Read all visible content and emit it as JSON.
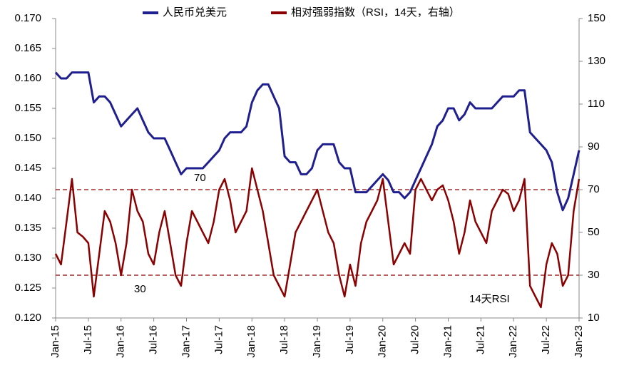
{
  "chart_data": {
    "type": "line",
    "categories": [
      "Jan-15",
      null,
      null,
      null,
      null,
      null,
      "Jul-15",
      null,
      null,
      null,
      null,
      null,
      "Jan-16",
      null,
      null,
      null,
      null,
      null,
      "Jul-16",
      null,
      null,
      null,
      null,
      null,
      "Jan-17",
      null,
      null,
      null,
      null,
      null,
      "Jul-17",
      null,
      null,
      null,
      null,
      null,
      "Jan-18",
      null,
      null,
      null,
      null,
      null,
      "Jul-18",
      null,
      null,
      null,
      null,
      null,
      "Jan-19",
      null,
      null,
      null,
      null,
      null,
      "Jul-19",
      null,
      null,
      null,
      null,
      null,
      "Jan-20",
      null,
      null,
      null,
      null,
      null,
      "Jul-20",
      null,
      null,
      null,
      null,
      null,
      "Jan-21",
      null,
      null,
      null,
      null,
      null,
      "Jul-21",
      null,
      null,
      null,
      null,
      null,
      "Jan-22",
      null,
      null,
      null,
      null,
      null,
      "Jul-22",
      null,
      null,
      null,
      null,
      null,
      "Jan-23"
    ],
    "series": [
      {
        "name": "人民币兑美元",
        "color": "#1f1f8f",
        "values": [
          0.161,
          0.16,
          0.16,
          0.161,
          0.161,
          0.161,
          0.161,
          0.156,
          0.157,
          0.157,
          0.156,
          0.154,
          0.152,
          0.153,
          0.154,
          0.155,
          0.153,
          0.151,
          0.15,
          0.15,
          0.15,
          0.148,
          0.146,
          0.144,
          0.145,
          0.145,
          0.145,
          0.145,
          0.146,
          0.147,
          0.148,
          0.15,
          0.151,
          0.151,
          0.151,
          0.152,
          0.156,
          0.158,
          0.159,
          0.159,
          0.157,
          0.155,
          0.147,
          0.146,
          0.146,
          0.144,
          0.144,
          0.145,
          0.148,
          0.149,
          0.149,
          0.149,
          0.146,
          0.145,
          0.145,
          0.141,
          0.141,
          0.141,
          0.142,
          0.143,
          0.144,
          0.143,
          0.141,
          0.141,
          0.14,
          0.141,
          0.143,
          0.145,
          0.147,
          0.149,
          0.152,
          0.153,
          0.155,
          0.155,
          0.153,
          0.154,
          0.156,
          0.155,
          0.155,
          0.155,
          0.155,
          0.156,
          0.157,
          0.157,
          0.157,
          0.158,
          0.158,
          0.151,
          0.15,
          0.149,
          0.148,
          0.146,
          0.141,
          0.138,
          0.14,
          0.144,
          0.148
        ]
      },
      {
        "name": "相对强弱指数（RSI，14天，右轴）",
        "color": "#8b0000",
        "axis": "y2",
        "values": [
          40,
          35,
          55,
          75,
          50,
          48,
          45,
          20,
          40,
          60,
          55,
          45,
          30,
          45,
          70,
          60,
          55,
          40,
          35,
          50,
          60,
          45,
          30,
          25,
          45,
          60,
          55,
          50,
          45,
          55,
          70,
          75,
          65,
          50,
          55,
          60,
          80,
          70,
          60,
          45,
          30,
          25,
          20,
          35,
          50,
          55,
          60,
          65,
          70,
          60,
          50,
          45,
          30,
          20,
          35,
          25,
          45,
          55,
          60,
          65,
          75,
          55,
          35,
          40,
          45,
          40,
          70,
          75,
          70,
          65,
          70,
          72,
          65,
          55,
          40,
          50,
          65,
          55,
          50,
          45,
          60,
          65,
          70,
          68,
          60,
          65,
          75,
          25,
          20,
          15,
          35,
          45,
          40,
          25,
          30,
          60,
          75
        ]
      }
    ],
    "ylim": [
      0.12,
      0.17
    ],
    "yticks": [
      {
        "value": 0.12,
        "label": "0.120"
      },
      {
        "value": 0.125,
        "label": "0.125"
      },
      {
        "value": 0.13,
        "label": "0.130"
      },
      {
        "value": 0.135,
        "label": "0.135"
      },
      {
        "value": 0.14,
        "label": "0.140"
      },
      {
        "value": 0.145,
        "label": "0.145"
      },
      {
        "value": 0.15,
        "label": "0.150"
      },
      {
        "value": 0.155,
        "label": "0.155"
      },
      {
        "value": 0.16,
        "label": "0.160"
      },
      {
        "value": 0.165,
        "label": "0.165"
      },
      {
        "value": 0.17,
        "label": "0.170"
      }
    ],
    "y2lim": [
      10,
      150
    ],
    "y2ticks": [
      10,
      30,
      50,
      70,
      90,
      110,
      130,
      150
    ],
    "hlines": [
      {
        "value": 70,
        "label": "70",
        "color": "#8b0000"
      },
      {
        "value": 30,
        "label": "30",
        "color": "#8b0000"
      }
    ],
    "annotation": "14天RSI",
    "legend": "top"
  }
}
